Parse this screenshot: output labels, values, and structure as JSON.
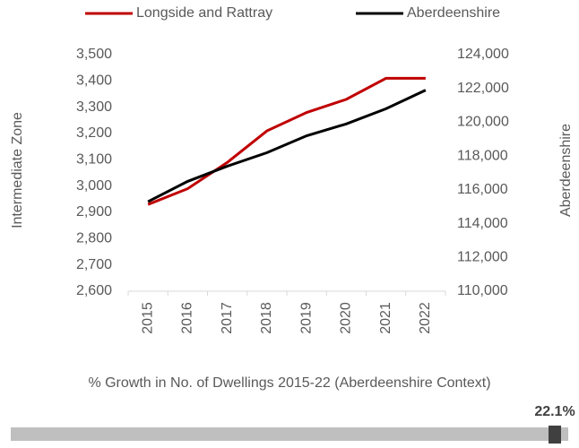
{
  "chart_data": [
    {
      "type": "line",
      "categories": [
        "2015",
        "2016",
        "2017",
        "2018",
        "2019",
        "2020",
        "2021",
        "2022"
      ],
      "series": [
        {
          "name": "Longside and Rattray",
          "color": "#c00000",
          "values": [
            2930,
            2990,
            3090,
            3210,
            3280,
            3330,
            3410,
            3410
          ]
        },
        {
          "name": "Aberdeenshire",
          "color": "#000000",
          "axis": "y2",
          "values": [
            115300,
            116500,
            117400,
            118200,
            119200,
            119900,
            120800,
            121900
          ]
        }
      ],
      "y_label": "Intermediate Zone",
      "y2_label": "Aberdeenshire",
      "ylim": [
        2600,
        3500
      ],
      "yticks": [
        {
          "value": 2600,
          "label": "2,600"
        },
        {
          "value": 2700,
          "label": "2,700"
        },
        {
          "value": 2800,
          "label": "2,800"
        },
        {
          "value": 2900,
          "label": "2,900"
        },
        {
          "value": 3000,
          "label": "3,000"
        },
        {
          "value": 3100,
          "label": "3,100"
        },
        {
          "value": 3200,
          "label": "3,200"
        },
        {
          "value": 3300,
          "label": "3,300"
        },
        {
          "value": 3400,
          "label": "3,400"
        },
        {
          "value": 3500,
          "label": "3,500"
        }
      ],
      "y2lim": [
        110000,
        124000
      ],
      "y2ticks": [
        {
          "value": 110000,
          "label": "110,000"
        },
        {
          "value": 112000,
          "label": "112,000"
        },
        {
          "value": 114000,
          "label": "114,000"
        },
        {
          "value": 116000,
          "label": "116,000"
        },
        {
          "value": 118000,
          "label": "118,000"
        },
        {
          "value": 120000,
          "label": "120,000"
        },
        {
          "value": 122000,
          "label": "122,000"
        },
        {
          "value": 124000,
          "label": "124,000"
        }
      ],
      "legend": "top"
    },
    {
      "type": "marker",
      "title": "% Growth in No. of Dwellings 2015-22 (Aberdeenshire Context)",
      "values": [
        22.1
      ],
      "value_labels": [
        "22.1%"
      ],
      "color": "#404040"
    }
  ]
}
